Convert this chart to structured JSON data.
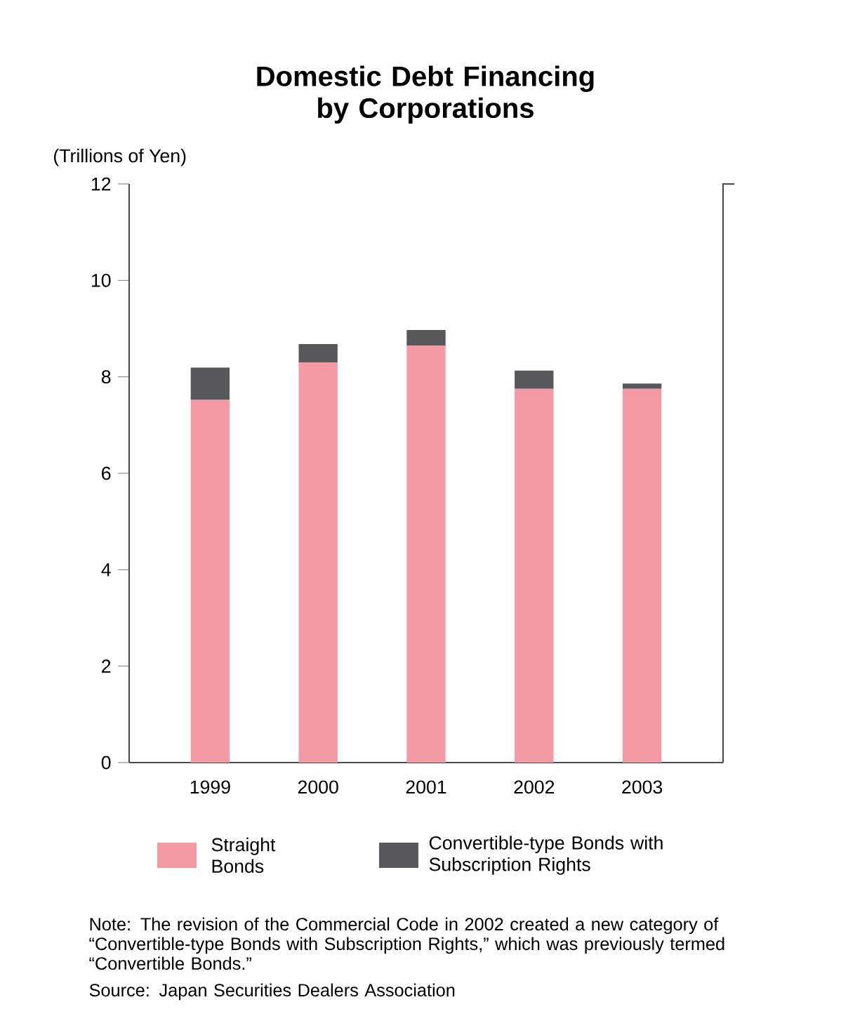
{
  "chart_data": {
    "type": "bar",
    "stacked": true,
    "title": "Domestic Debt Financing by Corporations",
    "ylabel": "(Trillions of Yen)",
    "categories": [
      "1999",
      "2000",
      "2001",
      "2002",
      "2003"
    ],
    "series": [
      {
        "name": "Straight Bonds",
        "color": "#f49aa4",
        "values": [
          7.52,
          8.3,
          8.65,
          7.75,
          7.75
        ]
      },
      {
        "name": "Convertible-type Bonds with Subscription Rights",
        "color": "#58585a",
        "values": [
          0.67,
          0.38,
          0.32,
          0.38,
          0.11
        ]
      }
    ],
    "ylim": [
      0,
      12
    ],
    "yticks": [
      0,
      2,
      4,
      6,
      8,
      10,
      12
    ],
    "legend": "bottom",
    "annotations": [
      "Note: The revision of the Commercial Code in 2002 created a new category of “Convertible-type Bonds with Subscription Rights,” which was previously termed “Convertible Bonds.”",
      "Source: Japan Securities Dealers Association"
    ]
  }
}
